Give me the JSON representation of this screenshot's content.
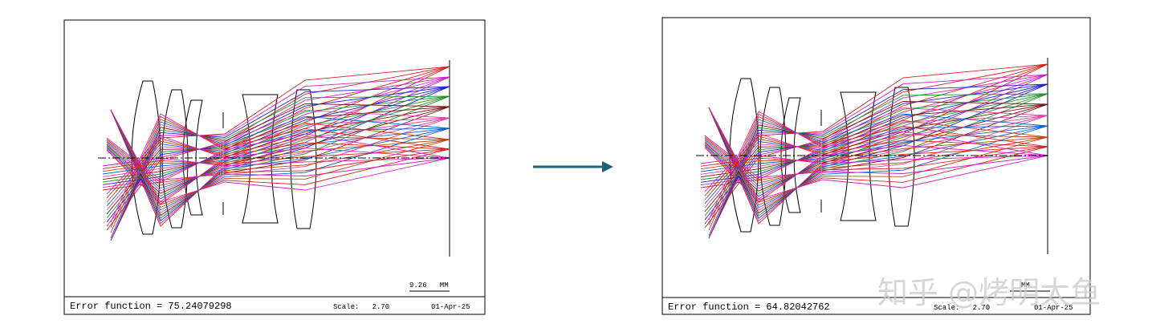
{
  "panels": [
    {
      "scale_bar": "9.26   MM",
      "error_function": "Error function = 75.24079298",
      "scale": "Scale:   2.70",
      "date": "01-Apr-25"
    },
    {
      "scale_bar": "MM",
      "error_function": "Error function = 64.82042762",
      "scale": "Scale:   2.70",
      "date": "01-Apr-25"
    }
  ],
  "watermark": "知乎 @烤明太鱼"
}
